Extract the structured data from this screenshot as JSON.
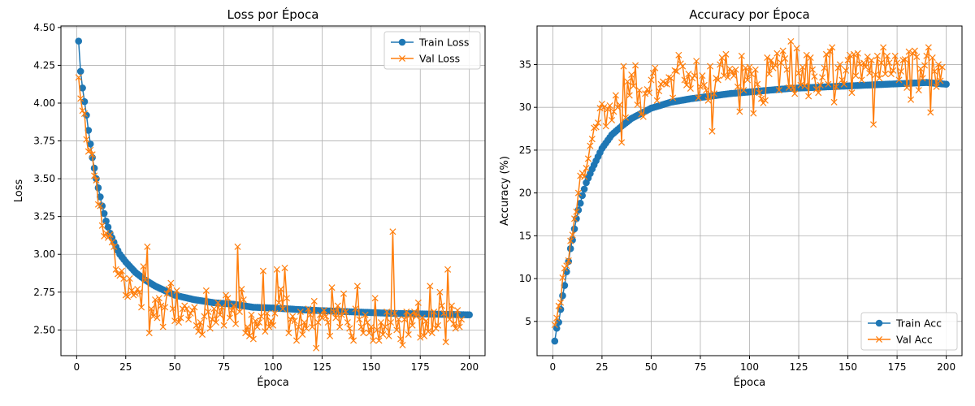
{
  "chart_data": [
    {
      "type": "line",
      "title": "Loss por Época",
      "xlabel": "Época",
      "ylabel": "Loss",
      "xlim": [
        -8,
        208
      ],
      "ylim": [
        2.33,
        4.51
      ],
      "xticks": [
        0,
        25,
        50,
        75,
        100,
        125,
        150,
        175,
        200
      ],
      "yticks": [
        2.5,
        2.75,
        3.0,
        3.25,
        3.5,
        3.75,
        4.0,
        4.25,
        4.5
      ],
      "ytick_decimals": 2,
      "grid": true,
      "legend_position": "top-right",
      "series": [
        {
          "name": "Train Loss",
          "color": "#1f77b4",
          "marker": "circle",
          "anchors": [
            [
              1,
              4.41
            ],
            [
              2,
              4.21
            ],
            [
              3,
              4.1
            ],
            [
              4,
              4.01
            ],
            [
              5,
              3.92
            ],
            [
              6,
              3.82
            ],
            [
              7,
              3.73
            ],
            [
              8,
              3.64
            ],
            [
              9,
              3.57
            ],
            [
              10,
              3.5
            ],
            [
              11,
              3.44
            ],
            [
              12,
              3.38
            ],
            [
              13,
              3.32
            ],
            [
              14,
              3.27
            ],
            [
              15,
              3.22
            ],
            [
              16,
              3.18
            ],
            [
              17,
              3.14
            ],
            [
              18,
              3.11
            ],
            [
              20,
              3.05
            ],
            [
              22,
              3.0
            ],
            [
              25,
              2.95
            ],
            [
              30,
              2.88
            ],
            [
              35,
              2.83
            ],
            [
              40,
              2.79
            ],
            [
              45,
              2.76
            ],
            [
              50,
              2.73
            ],
            [
              60,
              2.7
            ],
            [
              70,
              2.68
            ],
            [
              80,
              2.67
            ],
            [
              90,
              2.65
            ],
            [
              100,
              2.645
            ],
            [
              120,
              2.63
            ],
            [
              140,
              2.62
            ],
            [
              160,
              2.61
            ],
            [
              180,
              2.605
            ],
            [
              200,
              2.6
            ]
          ]
        },
        {
          "name": "Val Loss",
          "color": "#ff7f0e",
          "marker": "x",
          "values": [
            4.17,
            4.03,
            3.95,
            3.93,
            3.76,
            3.68,
            3.69,
            3.66,
            3.52,
            3.49,
            3.33,
            3.32,
            3.19,
            3.12,
            3.14,
            3.11,
            3.13,
            3.08,
            3.05,
            2.9,
            2.87,
            2.86,
            2.89,
            2.84,
            2.73,
            2.72,
            2.84,
            2.76,
            2.73,
            2.74,
            2.77,
            2.75,
            2.65,
            2.92,
            2.83,
            3.05,
            2.48,
            2.64,
            2.59,
            2.7,
            2.58,
            2.71,
            2.66,
            2.52,
            2.65,
            2.74,
            2.77,
            2.81,
            2.64,
            2.56,
            2.76,
            2.55,
            2.58,
            2.64,
            2.66,
            2.64,
            2.57,
            2.61,
            2.63,
            2.65,
            2.53,
            2.49,
            2.55,
            2.47,
            2.59,
            2.76,
            2.62,
            2.51,
            2.57,
            2.64,
            2.55,
            2.68,
            2.6,
            2.65,
            2.53,
            2.73,
            2.71,
            2.58,
            2.63,
            2.66,
            2.54,
            3.05,
            2.62,
            2.77,
            2.7,
            2.48,
            2.52,
            2.46,
            2.6,
            2.44,
            2.56,
            2.52,
            2.55,
            2.59,
            2.89,
            2.49,
            2.61,
            2.52,
            2.56,
            2.53,
            2.61,
            2.9,
            2.68,
            2.77,
            2.64,
            2.91,
            2.71,
            2.48,
            2.57,
            2.59,
            2.56,
            2.43,
            2.52,
            2.62,
            2.47,
            2.55,
            2.51,
            2.64,
            2.6,
            2.52,
            2.69,
            2.38,
            2.55,
            2.6,
            2.58,
            2.63,
            2.59,
            2.55,
            2.46,
            2.78,
            2.62,
            2.58,
            2.66,
            2.52,
            2.6,
            2.74,
            2.62,
            2.55,
            2.51,
            2.46,
            2.43,
            2.64,
            2.79,
            2.57,
            2.52,
            2.48,
            2.6,
            2.55,
            2.48,
            2.52,
            2.43,
            2.71,
            2.5,
            2.43,
            2.55,
            2.47,
            2.52,
            2.62,
            2.46,
            2.55,
            3.15,
            2.61,
            2.5,
            2.57,
            2.44,
            2.4,
            2.57,
            2.62,
            2.47,
            2.6,
            2.53,
            2.62,
            2.59,
            2.68,
            2.45,
            2.58,
            2.46,
            2.56,
            2.49,
            2.79,
            2.48,
            2.62,
            2.51,
            2.53,
            2.75,
            2.66,
            2.61,
            2.42,
            2.9,
            2.57,
            2.66,
            2.54,
            2.51,
            2.63,
            2.52,
            2.57
          ]
        }
      ]
    },
    {
      "type": "line",
      "title": "Accuracy por Época",
      "xlabel": "Época",
      "ylabel": "Accuracy (%)",
      "xlim": [
        -8,
        208
      ],
      "ylim": [
        1.0,
        39.5
      ],
      "xticks": [
        0,
        25,
        50,
        75,
        100,
        125,
        150,
        175,
        200
      ],
      "yticks": [
        5,
        10,
        15,
        20,
        25,
        30,
        35
      ],
      "ytick_decimals": 0,
      "grid": true,
      "legend_position": "bottom-right",
      "series": [
        {
          "name": "Train Acc",
          "color": "#1f77b4",
          "marker": "circle",
          "anchors": [
            [
              1,
              2.7
            ],
            [
              2,
              4.2
            ],
            [
              3,
              4.9
            ],
            [
              4,
              6.4
            ],
            [
              5,
              8.0
            ],
            [
              6,
              9.2
            ],
            [
              7,
              10.8
            ],
            [
              8,
              12.0
            ],
            [
              9,
              13.5
            ],
            [
              10,
              14.5
            ],
            [
              11,
              15.8
            ],
            [
              12,
              17.0
            ],
            [
              13,
              18.0
            ],
            [
              14,
              18.8
            ],
            [
              15,
              19.7
            ],
            [
              17,
              21.2
            ],
            [
              20,
              22.8
            ],
            [
              25,
              25.2
            ],
            [
              30,
              26.8
            ],
            [
              35,
              27.8
            ],
            [
              40,
              28.7
            ],
            [
              45,
              29.3
            ],
            [
              50,
              29.9
            ],
            [
              60,
              30.6
            ],
            [
              70,
              31.0
            ],
            [
              80,
              31.3
            ],
            [
              90,
              31.6
            ],
            [
              100,
              31.8
            ],
            [
              110,
              32.0
            ],
            [
              120,
              32.2
            ],
            [
              130,
              32.3
            ],
            [
              140,
              32.4
            ],
            [
              150,
              32.5
            ],
            [
              160,
              32.6
            ],
            [
              170,
              32.7
            ],
            [
              180,
              32.8
            ],
            [
              190,
              32.9
            ],
            [
              200,
              32.7
            ]
          ]
        },
        {
          "name": "Val Acc",
          "color": "#ff7f0e",
          "marker": "x",
          "values": [
            4.6,
            5.4,
            6.8,
            7.2,
            10.1,
            11.2,
            11.5,
            12.1,
            14.4,
            15.1,
            17.0,
            17.8,
            20.0,
            22.0,
            22.3,
            21.9,
            22.9,
            24.0,
            25.5,
            26.3,
            27.6,
            27.7,
            28.2,
            29.9,
            30.4,
            30.0,
            27.8,
            29.8,
            30.2,
            28.5,
            29.5,
            31.4,
            30.0,
            30.3,
            25.9,
            34.8,
            28.8,
            33.0,
            31.4,
            33.8,
            32.5,
            34.9,
            30.3,
            32.0,
            29.2,
            28.9,
            31.6,
            32.1,
            31.7,
            33.2,
            34.0,
            34.6,
            30.8,
            31.9,
            32.7,
            33.0,
            32.8,
            32.7,
            33.5,
            33.4,
            31.1,
            34.3,
            34.2,
            36.1,
            35.1,
            34.8,
            33.2,
            32.6,
            33.9,
            32.2,
            33.4,
            33.7,
            35.4,
            31.1,
            32.4,
            33.7,
            32.6,
            32.0,
            30.8,
            34.8,
            27.2,
            31.6,
            33.4,
            33.2,
            35.0,
            35.8,
            33.7,
            36.2,
            33.5,
            34.5,
            34.2,
            33.7,
            34.4,
            32.4,
            29.5,
            36.0,
            32.0,
            34.6,
            33.2,
            34.7,
            33.9,
            29.3,
            34.4,
            32.7,
            31.7,
            31.0,
            30.5,
            30.8,
            35.8,
            33.9,
            35.5,
            34.6,
            34.9,
            36.3,
            32.0,
            35.2,
            36.6,
            35.7,
            34.4,
            32.3,
            37.7,
            32.3,
            31.6,
            36.9,
            34.0,
            32.6,
            34.7,
            32.5,
            36.1,
            31.3,
            35.8,
            34.4,
            33.6,
            32.1,
            31.7,
            32.6,
            33.5,
            34.6,
            36.2,
            32.7,
            36.5,
            37.0,
            30.6,
            32.4,
            34.6,
            35.0,
            33.2,
            32.7,
            34.3,
            35.5,
            36.1,
            31.7,
            36.2,
            33.7,
            36.3,
            35.1,
            33.2,
            35.2,
            34.7,
            35.9,
            34.0,
            35.5,
            28.0,
            33.8,
            36.0,
            33.4,
            35.2,
            37.0,
            33.9,
            36.0,
            35.2,
            33.9,
            34.3,
            36.0,
            35.2,
            33.2,
            34.2,
            35.5,
            35.6,
            32.3,
            36.5,
            30.9,
            36.3,
            36.6,
            35.9,
            32.0,
            34.5,
            33.4,
            34.9,
            36.0,
            37.0,
            29.4,
            35.8,
            34.2,
            32.4,
            35.0,
            33.1,
            34.7
          ]
        }
      ]
    }
  ]
}
